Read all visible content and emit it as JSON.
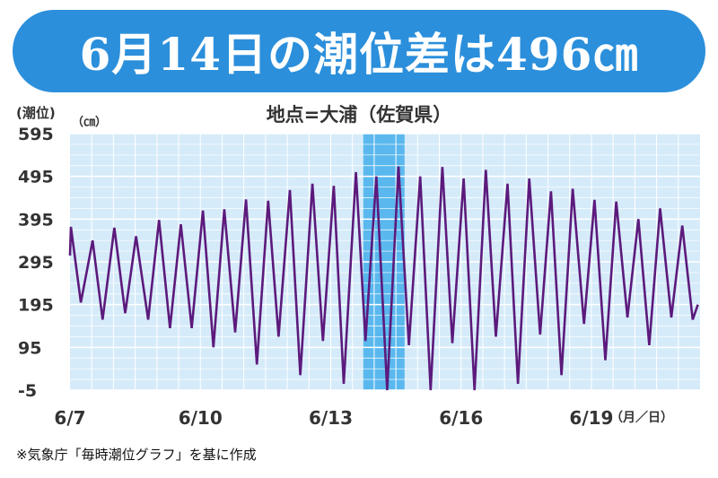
{
  "header": {
    "title": "6月14日の潮位差は496㎝",
    "subtitle": "地点=大浦（佐賀県）",
    "y_label": "(潮位)",
    "y_unit": "（㎝）",
    "source": "※気象庁「毎時潮位グラフ」を基に作成"
  },
  "colors": {
    "banner": "#2b8fdb",
    "plot_background": "#d6ebf9",
    "highlight": "#5ab8ee",
    "line": "#5c1a7c",
    "grid": "#ffffff"
  },
  "chart_data": {
    "type": "line",
    "title": "6月14日の潮位差は496㎝",
    "subtitle": "地点=大浦（佐賀県）",
    "ylabel": "(潮位)",
    "yunit": "（㎝）",
    "xunit": "（月／日）",
    "ylim": [
      -5,
      595
    ],
    "yticks": [
      "595",
      "495",
      "395",
      "295",
      "195",
      "95",
      "-5"
    ],
    "xlim": [
      0,
      14.5
    ],
    "xticks": [
      {
        "x": 0,
        "label": "6/7"
      },
      {
        "x": 3,
        "label": "6/10"
      },
      {
        "x": 6,
        "label": "6/13"
      },
      {
        "x": 9,
        "label": "6/16"
      },
      {
        "x": 12,
        "label": "6/19"
      }
    ],
    "grid": true,
    "highlight_range": [
      6.75,
      7.7
    ],
    "series": [
      {
        "points": [
          [
            0.0,
            310
          ],
          [
            0.02,
            377
          ],
          [
            0.25,
            200
          ],
          [
            0.52,
            345
          ],
          [
            0.75,
            160
          ],
          [
            1.02,
            375
          ],
          [
            1.27,
            175
          ],
          [
            1.52,
            355
          ],
          [
            1.8,
            160
          ],
          [
            2.05,
            393
          ],
          [
            2.3,
            140
          ],
          [
            2.55,
            383
          ],
          [
            2.8,
            140
          ],
          [
            3.06,
            415
          ],
          [
            3.3,
            95
          ],
          [
            3.55,
            418
          ],
          [
            3.8,
            130
          ],
          [
            4.05,
            441
          ],
          [
            4.3,
            55
          ],
          [
            4.56,
            438
          ],
          [
            4.8,
            120
          ],
          [
            5.06,
            463
          ],
          [
            5.3,
            30
          ],
          [
            5.58,
            478
          ],
          [
            5.82,
            110
          ],
          [
            6.07,
            473
          ],
          [
            6.3,
            10
          ],
          [
            6.58,
            505
          ],
          [
            6.8,
            110
          ],
          [
            7.05,
            495
          ],
          [
            7.3,
            -5
          ],
          [
            7.56,
            518
          ],
          [
            7.8,
            100
          ],
          [
            8.06,
            495
          ],
          [
            8.3,
            -5
          ],
          [
            8.57,
            517
          ],
          [
            8.8,
            105
          ],
          [
            9.06,
            490
          ],
          [
            9.31,
            -5
          ],
          [
            9.57,
            510
          ],
          [
            9.8,
            120
          ],
          [
            10.07,
            478
          ],
          [
            10.31,
            10
          ],
          [
            10.57,
            490
          ],
          [
            10.82,
            125
          ],
          [
            11.07,
            460
          ],
          [
            11.31,
            30
          ],
          [
            11.57,
            466
          ],
          [
            11.83,
            150
          ],
          [
            12.07,
            440
          ],
          [
            12.32,
            65
          ],
          [
            12.57,
            436
          ],
          [
            12.83,
            165
          ],
          [
            13.08,
            395
          ],
          [
            13.33,
            100
          ],
          [
            13.58,
            420
          ],
          [
            13.84,
            165
          ],
          [
            14.09,
            380
          ],
          [
            14.33,
            160
          ],
          [
            14.45,
            195
          ]
        ]
      }
    ]
  }
}
